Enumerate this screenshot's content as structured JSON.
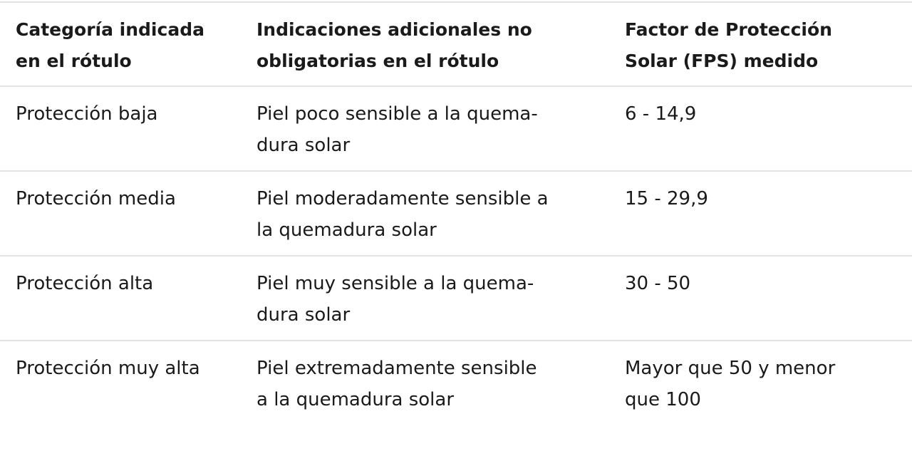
{
  "table": {
    "header": [
      "Categoría indicada\nen el rótulo",
      "Indicaciones adicionales no\nobligatorias en el rótulo",
      "Factor de Protección\nSolar (FPS) medido"
    ],
    "rows": [
      [
        "Protección baja",
        "Piel poco sensible a la quema-\ndura solar",
        "6 - 14,9"
      ],
      [
        "Protección media",
        "Piel moderadamente sensible a\nla quemadura solar",
        "15 - 29,9"
      ],
      [
        "Protección alta",
        "Piel muy sensible a la quema-\ndura solar",
        "30 - 50"
      ],
      [
        "Protección muy alta",
        "Piel extremadamente sensible\na la quemadura solar",
        "Mayor que 50 y menor\nque 100"
      ]
    ]
  }
}
